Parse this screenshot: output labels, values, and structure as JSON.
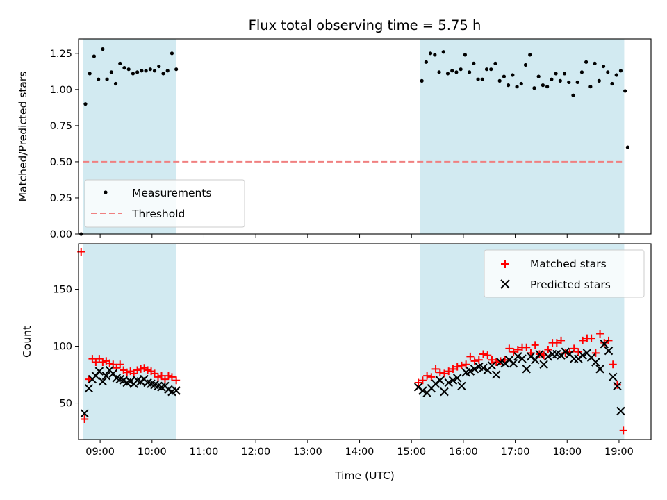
{
  "chart_data": {
    "title": "Flux total observing time = 5.75 h",
    "xlabel": "Time (UTC)",
    "x_unit": "hours UTC",
    "xlim": [
      "08:35",
      "19:37"
    ],
    "x_ticks": [
      "09:00",
      "10:00",
      "11:00",
      "12:00",
      "13:00",
      "14:00",
      "15:00",
      "16:00",
      "17:00",
      "18:00",
      "19:00"
    ],
    "shaded_intervals": [
      [
        "08:40",
        "10:28"
      ],
      [
        "15:10",
        "19:06"
      ]
    ],
    "shade_color": "#add8e6",
    "panels": [
      {
        "type": "scatter",
        "ylabel": "Matched/Predicted stars",
        "ylim": [
          0.0,
          1.35
        ],
        "y_ticks": [
          "0.00",
          "0.25",
          "0.50",
          "0.75",
          "1.00",
          "1.25"
        ],
        "y_tick_values": [
          0.0,
          0.25,
          0.5,
          0.75,
          1.0,
          1.25
        ],
        "legend_position": "lower-left",
        "threshold": {
          "name": "Threshold",
          "value": 0.5,
          "x_range": [
            "08:40",
            "19:06"
          ],
          "color": "#f08080",
          "style": "dashed"
        },
        "series": [
          {
            "name": "Measurements",
            "marker": "dot",
            "color": "#000000",
            "points": [
              [
                "08:38",
                0.0
              ],
              [
                "08:43",
                0.9
              ],
              [
                "08:48",
                1.11
              ],
              [
                "08:53",
                1.23
              ],
              [
                "08:58",
                1.07
              ],
              [
                "09:03",
                1.28
              ],
              [
                "09:08",
                1.07
              ],
              [
                "09:13",
                1.12
              ],
              [
                "09:18",
                1.04
              ],
              [
                "09:23",
                1.18
              ],
              [
                "09:28",
                1.15
              ],
              [
                "09:33",
                1.14
              ],
              [
                "09:38",
                1.11
              ],
              [
                "09:43",
                1.12
              ],
              [
                "09:48",
                1.13
              ],
              [
                "09:53",
                1.13
              ],
              [
                "09:58",
                1.14
              ],
              [
                "10:03",
                1.13
              ],
              [
                "10:08",
                1.16
              ],
              [
                "10:13",
                1.11
              ],
              [
                "10:18",
                1.13
              ],
              [
                "10:23",
                1.25
              ],
              [
                "10:28",
                1.14
              ],
              [
                "15:12",
                1.06
              ],
              [
                "15:17",
                1.19
              ],
              [
                "15:22",
                1.25
              ],
              [
                "15:27",
                1.24
              ],
              [
                "15:32",
                1.12
              ],
              [
                "15:37",
                1.26
              ],
              [
                "15:42",
                1.11
              ],
              [
                "15:47",
                1.13
              ],
              [
                "15:52",
                1.12
              ],
              [
                "15:57",
                1.14
              ],
              [
                "16:02",
                1.24
              ],
              [
                "16:07",
                1.12
              ],
              [
                "16:12",
                1.18
              ],
              [
                "16:17",
                1.07
              ],
              [
                "16:22",
                1.07
              ],
              [
                "16:27",
                1.14
              ],
              [
                "16:32",
                1.14
              ],
              [
                "16:37",
                1.18
              ],
              [
                "16:42",
                1.06
              ],
              [
                "16:47",
                1.09
              ],
              [
                "16:52",
                1.03
              ],
              [
                "16:57",
                1.1
              ],
              [
                "17:02",
                1.02
              ],
              [
                "17:07",
                1.04
              ],
              [
                "17:12",
                1.17
              ],
              [
                "17:17",
                1.24
              ],
              [
                "17:22",
                1.01
              ],
              [
                "17:27",
                1.09
              ],
              [
                "17:32",
                1.03
              ],
              [
                "17:37",
                1.02
              ],
              [
                "17:42",
                1.07
              ],
              [
                "17:47",
                1.11
              ],
              [
                "17:52",
                1.06
              ],
              [
                "17:57",
                1.11
              ],
              [
                "18:02",
                1.05
              ],
              [
                "18:07",
                0.96
              ],
              [
                "18:12",
                1.05
              ],
              [
                "18:17",
                1.12
              ],
              [
                "18:22",
                1.19
              ],
              [
                "18:27",
                1.02
              ],
              [
                "18:32",
                1.18
              ],
              [
                "18:37",
                1.06
              ],
              [
                "18:42",
                1.16
              ],
              [
                "18:47",
                1.12
              ],
              [
                "18:52",
                1.04
              ],
              [
                "18:57",
                1.1
              ],
              [
                "19:02",
                1.13
              ],
              [
                "19:07",
                0.99
              ],
              [
                "19:10",
                0.6
              ]
            ]
          }
        ]
      },
      {
        "type": "scatter",
        "ylabel": "Count",
        "ylim": [
          18,
          190
        ],
        "y_ticks": [
          "50",
          "100",
          "150"
        ],
        "y_tick_values": [
          50,
          100,
          150
        ],
        "legend_position": "top-right",
        "series": [
          {
            "name": "Matched stars",
            "marker": "plus",
            "color": "#ff0000",
            "points": [
              [
                "08:38",
                183
              ],
              [
                "08:42",
                36
              ],
              [
                "08:47",
                71
              ],
              [
                "08:51",
                89
              ],
              [
                "08:55",
                86
              ],
              [
                "08:59",
                89
              ],
              [
                "09:03",
                86
              ],
              [
                "09:07",
                87
              ],
              [
                "09:11",
                85
              ],
              [
                "09:15",
                84
              ],
              [
                "09:19",
                81
              ],
              [
                "09:23",
                84
              ],
              [
                "09:27",
                79
              ],
              [
                "09:31",
                77
              ],
              [
                "09:35",
                78
              ],
              [
                "09:39",
                76
              ],
              [
                "09:43",
                79
              ],
              [
                "09:47",
                80
              ],
              [
                "09:51",
                81
              ],
              [
                "09:55",
                79
              ],
              [
                "09:59",
                78
              ],
              [
                "10:03",
                76
              ],
              [
                "10:07",
                73
              ],
              [
                "10:11",
                74
              ],
              [
                "10:15",
                71
              ],
              [
                "10:19",
                74
              ],
              [
                "10:23",
                73
              ],
              [
                "10:28",
                70
              ],
              [
                "15:08",
                68
              ],
              [
                "15:13",
                70
              ],
              [
                "15:18",
                74
              ],
              [
                "15:23",
                73
              ],
              [
                "15:28",
                80
              ],
              [
                "15:33",
                77
              ],
              [
                "15:38",
                76
              ],
              [
                "15:43",
                78
              ],
              [
                "15:48",
                80
              ],
              [
                "15:53",
                82
              ],
              [
                "15:58",
                83
              ],
              [
                "16:03",
                84
              ],
              [
                "16:08",
                91
              ],
              [
                "16:13",
                87
              ],
              [
                "16:18",
                88
              ],
              [
                "16:23",
                93
              ],
              [
                "16:28",
                92
              ],
              [
                "16:33",
                88
              ],
              [
                "16:38",
                86
              ],
              [
                "16:43",
                87
              ],
              [
                "16:48",
                88
              ],
              [
                "16:53",
                98
              ],
              [
                "16:58",
                95
              ],
              [
                "17:03",
                97
              ],
              [
                "17:08",
                99
              ],
              [
                "17:13",
                99
              ],
              [
                "17:18",
                94
              ],
              [
                "17:23",
                101
              ],
              [
                "17:28",
                93
              ],
              [
                "17:33",
                92
              ],
              [
                "17:38",
                97
              ],
              [
                "17:43",
                103
              ],
              [
                "17:48",
                103
              ],
              [
                "17:53",
                105
              ],
              [
                "17:58",
                94
              ],
              [
                "18:03",
                95
              ],
              [
                "18:08",
                98
              ],
              [
                "18:13",
                95
              ],
              [
                "18:18",
                105
              ],
              [
                "18:23",
                107
              ],
              [
                "18:28",
                107
              ],
              [
                "18:33",
                94
              ],
              [
                "18:38",
                111
              ],
              [
                "18:43",
                103
              ],
              [
                "18:48",
                105
              ],
              [
                "18:53",
                84
              ],
              [
                "18:58",
                66
              ],
              [
                "19:05",
                26
              ]
            ]
          },
          {
            "name": "Predicted stars",
            "marker": "x",
            "color": "#000000",
            "points": [
              [
                "08:42",
                41
              ],
              [
                "08:47",
                63
              ],
              [
                "08:51",
                71
              ],
              [
                "08:55",
                74
              ],
              [
                "08:59",
                78
              ],
              [
                "09:03",
                69
              ],
              [
                "09:07",
                74
              ],
              [
                "09:11",
                79
              ],
              [
                "09:15",
                76
              ],
              [
                "09:19",
                72
              ],
              [
                "09:23",
                71
              ],
              [
                "09:27",
                70
              ],
              [
                "09:31",
                68
              ],
              [
                "09:35",
                69
              ],
              [
                "09:39",
                67
              ],
              [
                "09:43",
                70
              ],
              [
                "09:47",
                69
              ],
              [
                "09:51",
                71
              ],
              [
                "09:55",
                68
              ],
              [
                "09:59",
                67
              ],
              [
                "10:03",
                66
              ],
              [
                "10:07",
                65
              ],
              [
                "10:11",
                64
              ],
              [
                "10:15",
                65
              ],
              [
                "10:19",
                62
              ],
              [
                "10:23",
                60
              ],
              [
                "10:28",
                61
              ],
              [
                "15:08",
                64
              ],
              [
                "15:13",
                61
              ],
              [
                "15:18",
                59
              ],
              [
                "15:23",
                63
              ],
              [
                "15:28",
                67
              ],
              [
                "15:33",
                70
              ],
              [
                "15:38",
                60
              ],
              [
                "15:43",
                68
              ],
              [
                "15:48",
                70
              ],
              [
                "15:53",
                72
              ],
              [
                "15:58",
                65
              ],
              [
                "16:03",
                77
              ],
              [
                "16:08",
                78
              ],
              [
                "16:13",
                80
              ],
              [
                "16:18",
                82
              ],
              [
                "16:23",
                81
              ],
              [
                "16:28",
                79
              ],
              [
                "16:33",
                83
              ],
              [
                "16:38",
                75
              ],
              [
                "16:43",
                86
              ],
              [
                "16:48",
                85
              ],
              [
                "16:53",
                88
              ],
              [
                "16:58",
                85
              ],
              [
                "17:03",
                91
              ],
              [
                "17:08",
                89
              ],
              [
                "17:13",
                80
              ],
              [
                "17:18",
                91
              ],
              [
                "17:23",
                88
              ],
              [
                "17:28",
                93
              ],
              [
                "17:33",
                84
              ],
              [
                "17:38",
                91
              ],
              [
                "17:43",
                93
              ],
              [
                "17:48",
                93
              ],
              [
                "17:53",
                92
              ],
              [
                "17:58",
                95
              ],
              [
                "18:03",
                93
              ],
              [
                "18:08",
                89
              ],
              [
                "18:13",
                89
              ],
              [
                "18:18",
                92
              ],
              [
                "18:23",
                94
              ],
              [
                "18:28",
                90
              ],
              [
                "18:33",
                86
              ],
              [
                "18:38",
                80
              ],
              [
                "18:43",
                102
              ],
              [
                "18:48",
                96
              ],
              [
                "18:53",
                73
              ],
              [
                "18:58",
                65
              ],
              [
                "19:02",
                43
              ]
            ]
          }
        ]
      }
    ]
  }
}
